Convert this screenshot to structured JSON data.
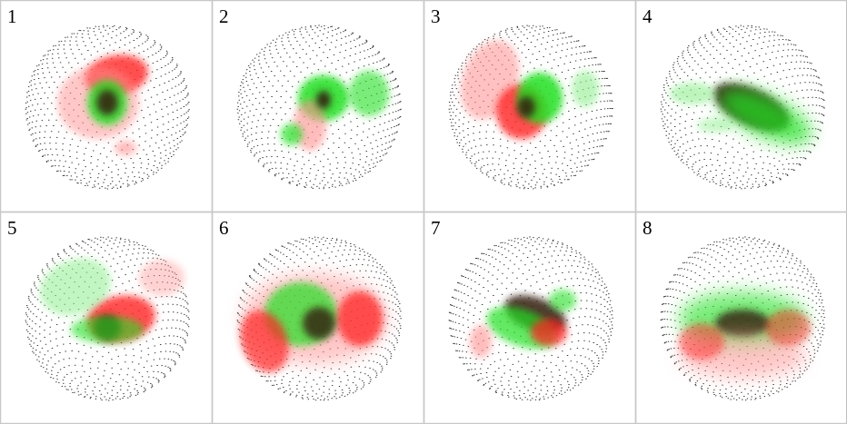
{
  "panels": [
    {
      "label": "1"
    },
    {
      "label": "2"
    },
    {
      "label": "3"
    },
    {
      "label": "4"
    },
    {
      "label": "5"
    },
    {
      "label": "6"
    },
    {
      "label": "7"
    },
    {
      "label": "8"
    }
  ]
}
